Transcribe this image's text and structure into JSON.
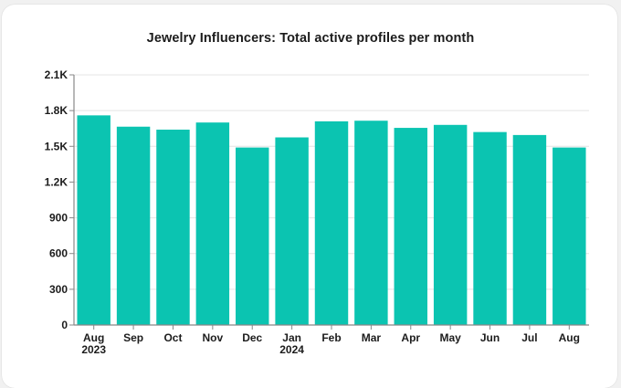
{
  "chart_data": {
    "type": "bar",
    "title": "Jewelry Influencers: Total active profiles per month",
    "xlabel": "",
    "ylabel": "",
    "ylim": [
      0,
      2100
    ],
    "yticks": [
      0,
      300,
      600,
      900,
      1200,
      1500,
      1800,
      2100
    ],
    "ytick_labels": [
      "0",
      "300",
      "600",
      "900",
      "1.2K",
      "1.5K",
      "1.8K",
      "2.1K"
    ],
    "grid": true,
    "categories": [
      "Aug",
      "Sep",
      "Oct",
      "Nov",
      "Dec",
      "Jan",
      "Feb",
      "Mar",
      "Apr",
      "May",
      "Jun",
      "Jul",
      "Aug"
    ],
    "category_sublabels": [
      "2023",
      "",
      "",
      "",
      "",
      "2024",
      "",
      "",
      "",
      "",
      "",
      "",
      ""
    ],
    "values": [
      1760,
      1665,
      1640,
      1700,
      1490,
      1575,
      1710,
      1715,
      1655,
      1680,
      1620,
      1595,
      1490
    ],
    "bar_color": "#0bc4b1"
  }
}
